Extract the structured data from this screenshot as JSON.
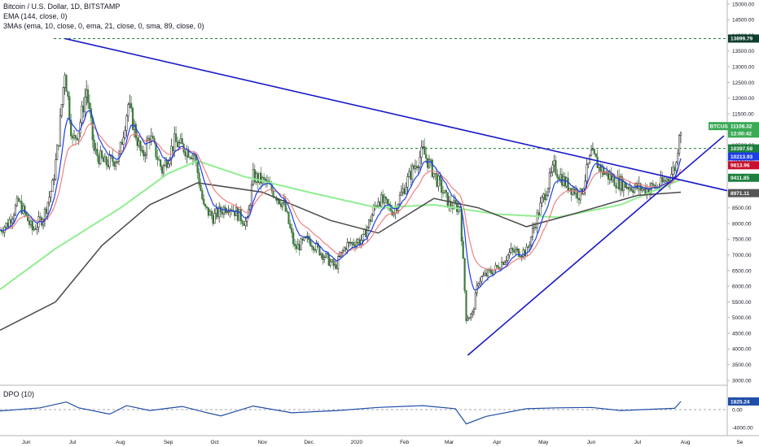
{
  "header": {
    "title": "Bitcoin / U.S. Dollar, 1D, BITSTAMP",
    "ema_label": "EMA (144, close, 0)",
    "mas_label": "3MAs (ema, 10, close, 0, ema, 21, close, 0, sma, 89, close, 0)"
  },
  "dpo": {
    "label": "DPO (10)",
    "value_label": "1825.24",
    "ticks": [
      "2000.00",
      "0.00",
      "-4000.00"
    ]
  },
  "colors": {
    "candle_up": "#1e1e1e",
    "candle_down": "#3d7a3d",
    "ema10": "#1e3ee6",
    "ema21": "#f08080",
    "sma89": "#4a4a4a",
    "ema144": "#90ee90",
    "trendline": "#1818c8",
    "dpo": "#1f4ea8",
    "tag_green": "#1e7f3e",
    "tag_red": "#c8102e",
    "tag_blue": "#1e3ee6",
    "tag_dark": "#555555",
    "tag_btc": "#3aaa55",
    "tag_black": "#0f3d2e"
  },
  "chart_data": {
    "type": "candlestick",
    "title": "Bitcoin / U.S. Dollar, 1D, BITSTAMP",
    "x_tick_labels": [
      "Jun",
      "Jul",
      "Aug",
      "Sep",
      "Oct",
      "Nov",
      "Dec",
      "2020",
      "Feb",
      "Mar",
      "Apr",
      "May",
      "Jun",
      "Jul",
      "Aug",
      "Se"
    ],
    "y_ticks": [
      15000,
      14500,
      14000,
      13500,
      13000,
      12500,
      12000,
      11500,
      11000,
      10500,
      10000,
      9500,
      9000,
      8500,
      8000,
      7500,
      7000,
      6500,
      6000,
      5500,
      5000,
      4500,
      4000,
      3500,
      3000
    ],
    "y_tick_labels": [
      "15000.00",
      "14500.00",
      "14000.00",
      "13500.00",
      "13000.00",
      "12500.00",
      "12000.00",
      "11500.00",
      "11000.00",
      "10500.00",
      "10000.00",
      "9500.00",
      "9000.00",
      "8500.00",
      "8000.00",
      "7500.00",
      "7000.00",
      "6500.00",
      "6000.00",
      "5500.00",
      "5000.00",
      "4500.00",
      "4000.00",
      "3500.00",
      "3000.00"
    ],
    "ylim": [
      2900,
      15100
    ],
    "price_path": [
      [
        "2019-05-15",
        7800
      ],
      [
        "2019-05-20",
        8000
      ],
      [
        "2019-05-27",
        8700
      ],
      [
        "2019-06-05",
        7800
      ],
      [
        "2019-06-12",
        8200
      ],
      [
        "2019-06-18",
        9200
      ],
      [
        "2019-06-22",
        10700
      ],
      [
        "2019-06-26",
        12900
      ],
      [
        "2019-07-01",
        10600
      ],
      [
        "2019-07-05",
        11000
      ],
      [
        "2019-07-10",
        12300
      ],
      [
        "2019-07-15",
        10300
      ],
      [
        "2019-07-22",
        9900
      ],
      [
        "2019-07-31",
        10100
      ],
      [
        "2019-08-06",
        11800
      ],
      [
        "2019-08-15",
        10100
      ],
      [
        "2019-08-20",
        10800
      ],
      [
        "2019-08-28",
        9700
      ],
      [
        "2019-09-05",
        10600
      ],
      [
        "2019-09-18",
        10200
      ],
      [
        "2019-09-24",
        8500
      ],
      [
        "2019-09-30",
        8200
      ],
      [
        "2019-10-10",
        8600
      ],
      [
        "2019-10-22",
        8000
      ],
      [
        "2019-10-26",
        9500
      ],
      [
        "2019-11-03",
        9300
      ],
      [
        "2019-11-15",
        8600
      ],
      [
        "2019-11-22",
        7200
      ],
      [
        "2019-12-01",
        7500
      ],
      [
        "2019-12-18",
        6600
      ],
      [
        "2019-12-25",
        7300
      ],
      [
        "2020-01-05",
        7500
      ],
      [
        "2020-01-15",
        8800
      ],
      [
        "2020-01-25",
        8400
      ],
      [
        "2020-02-05",
        9600
      ],
      [
        "2020-02-13",
        10300
      ],
      [
        "2020-02-20",
        9600
      ],
      [
        "2020-03-01",
        8600
      ],
      [
        "2020-03-08",
        8500
      ],
      [
        "2020-03-12",
        5000
      ],
      [
        "2020-03-16",
        5100
      ],
      [
        "2020-03-20",
        6200
      ],
      [
        "2020-04-01",
        6600
      ],
      [
        "2020-04-10",
        7100
      ],
      [
        "2020-04-20",
        7100
      ],
      [
        "2020-04-30",
        8700
      ],
      [
        "2020-05-08",
        9800
      ],
      [
        "2020-05-15",
        9300
      ],
      [
        "2020-05-25",
        8900
      ],
      [
        "2020-06-01",
        10200
      ],
      [
        "2020-06-08",
        9700
      ],
      [
        "2020-06-15",
        9400
      ],
      [
        "2020-06-25",
        9200
      ],
      [
        "2020-07-05",
        9100
      ],
      [
        "2020-07-15",
        9200
      ],
      [
        "2020-07-22",
        9500
      ],
      [
        "2020-07-26",
        9900
      ],
      [
        "2020-07-28",
        11000
      ],
      [
        "2020-07-30",
        11108
      ]
    ],
    "series": [
      {
        "name": "EMA (144, close, 0)",
        "points": [
          [
            "2019-05-15",
            5900
          ],
          [
            "2019-06-20",
            7200
          ],
          [
            "2019-08-01",
            8500
          ],
          [
            "2019-09-01",
            9600
          ],
          [
            "2019-09-20",
            10000
          ],
          [
            "2019-10-20",
            9500
          ],
          [
            "2019-12-01",
            9000
          ],
          [
            "2020-01-15",
            8500
          ],
          [
            "2020-02-20",
            8600
          ],
          [
            "2020-04-01",
            8300
          ],
          [
            "2020-05-10",
            8200
          ],
          [
            "2020-06-20",
            8600
          ],
          [
            "2020-07-29",
            9400
          ]
        ]
      },
      {
        "name": "3MAs sma 89",
        "points": [
          [
            "2019-05-15",
            4600
          ],
          [
            "2019-06-20",
            5500
          ],
          [
            "2019-07-20",
            7300
          ],
          [
            "2019-08-20",
            8600
          ],
          [
            "2019-09-20",
            9300
          ],
          [
            "2019-11-01",
            9000
          ],
          [
            "2019-12-15",
            8100
          ],
          [
            "2020-01-15",
            7700
          ],
          [
            "2020-02-20",
            8800
          ],
          [
            "2020-03-20",
            8500
          ],
          [
            "2020-04-20",
            7900
          ],
          [
            "2020-05-20",
            8300
          ],
          [
            "2020-07-01",
            8900
          ],
          [
            "2020-07-29",
            9000
          ]
        ]
      }
    ],
    "price_tags": [
      {
        "label": "BTCUSD",
        "value": "11108.32",
        "price": 11108
      },
      {
        "label": "",
        "value": "12:00:42",
        "price": 10870
      },
      {
        "label": "",
        "value": "13899.79",
        "price": 13900
      },
      {
        "label": "",
        "value": "10397.59",
        "price": 10397
      },
      {
        "label": "",
        "value": "10213.93",
        "price": 10140
      },
      {
        "label": "",
        "value": "9813.96",
        "price": 9860
      },
      {
        "label": "",
        "value": "9411.85",
        "price": 9460
      },
      {
        "label": "",
        "value": "8971.11",
        "price": 8971
      }
    ],
    "dpo_series": [
      [
        "2019-05-15",
        -300
      ],
      [
        "2019-06-10",
        400
      ],
      [
        "2019-06-27",
        1700
      ],
      [
        "2019-07-05",
        400
      ],
      [
        "2019-07-25",
        -1000
      ],
      [
        "2019-08-05",
        900
      ],
      [
        "2019-08-20",
        -200
      ],
      [
        "2019-09-10",
        700
      ],
      [
        "2019-09-25",
        -600
      ],
      [
        "2019-10-05",
        -1400
      ],
      [
        "2019-10-26",
        800
      ],
      [
        "2019-11-20",
        -700
      ],
      [
        "2019-12-20",
        -200
      ],
      [
        "2020-01-15",
        500
      ],
      [
        "2020-02-13",
        900
      ],
      [
        "2020-03-05",
        200
      ],
      [
        "2020-03-12",
        -3200
      ],
      [
        "2020-03-25",
        -1500
      ],
      [
        "2020-04-20",
        200
      ],
      [
        "2020-05-10",
        400
      ],
      [
        "2020-06-01",
        500
      ],
      [
        "2020-06-20",
        -200
      ],
      [
        "2020-07-25",
        300
      ],
      [
        "2020-07-29",
        1825
      ]
    ]
  }
}
